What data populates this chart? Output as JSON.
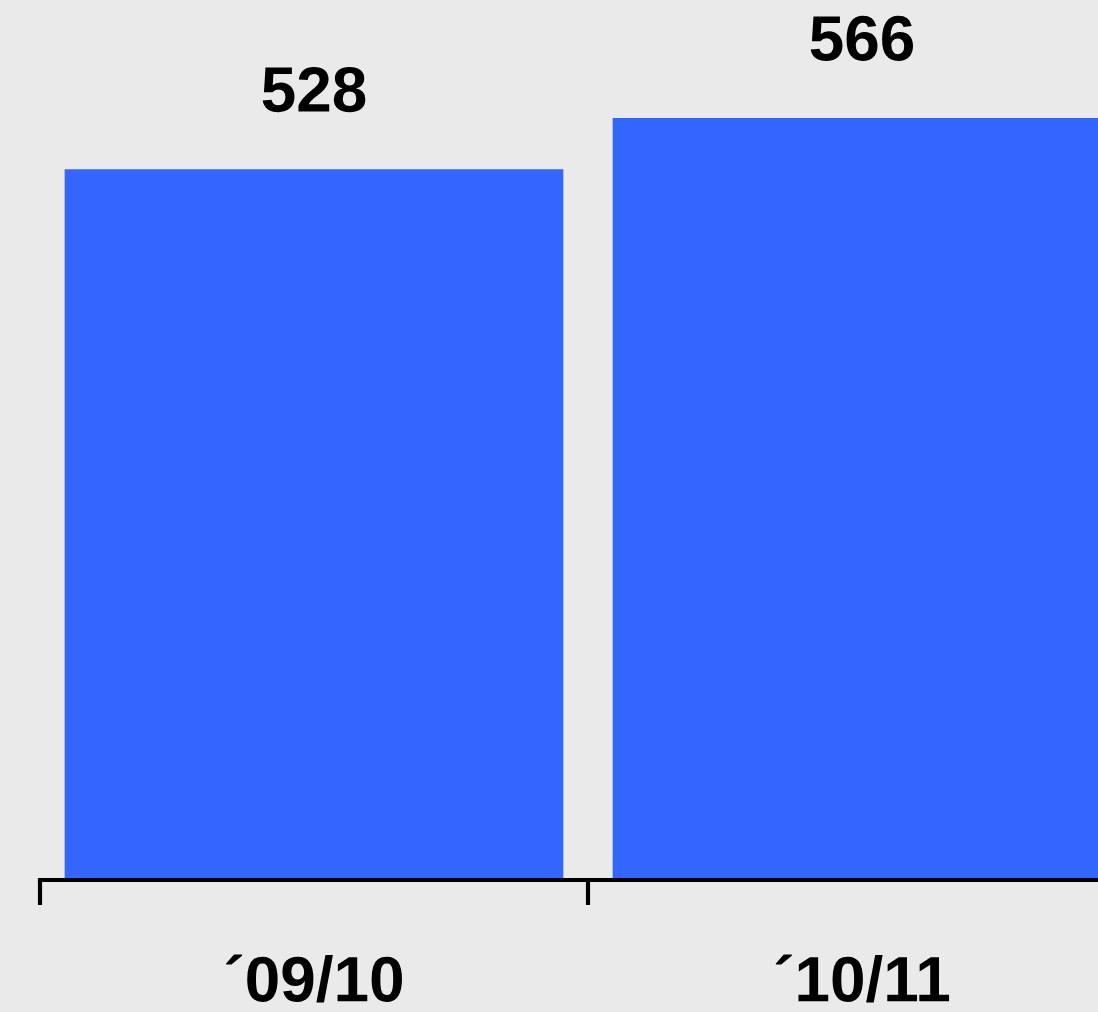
{
  "chart_data": {
    "type": "bar",
    "categories": [
      "´09/10",
      "´10/11"
    ],
    "values": [
      528,
      566
    ],
    "color": "#3366ff",
    "data_labels": true
  }
}
